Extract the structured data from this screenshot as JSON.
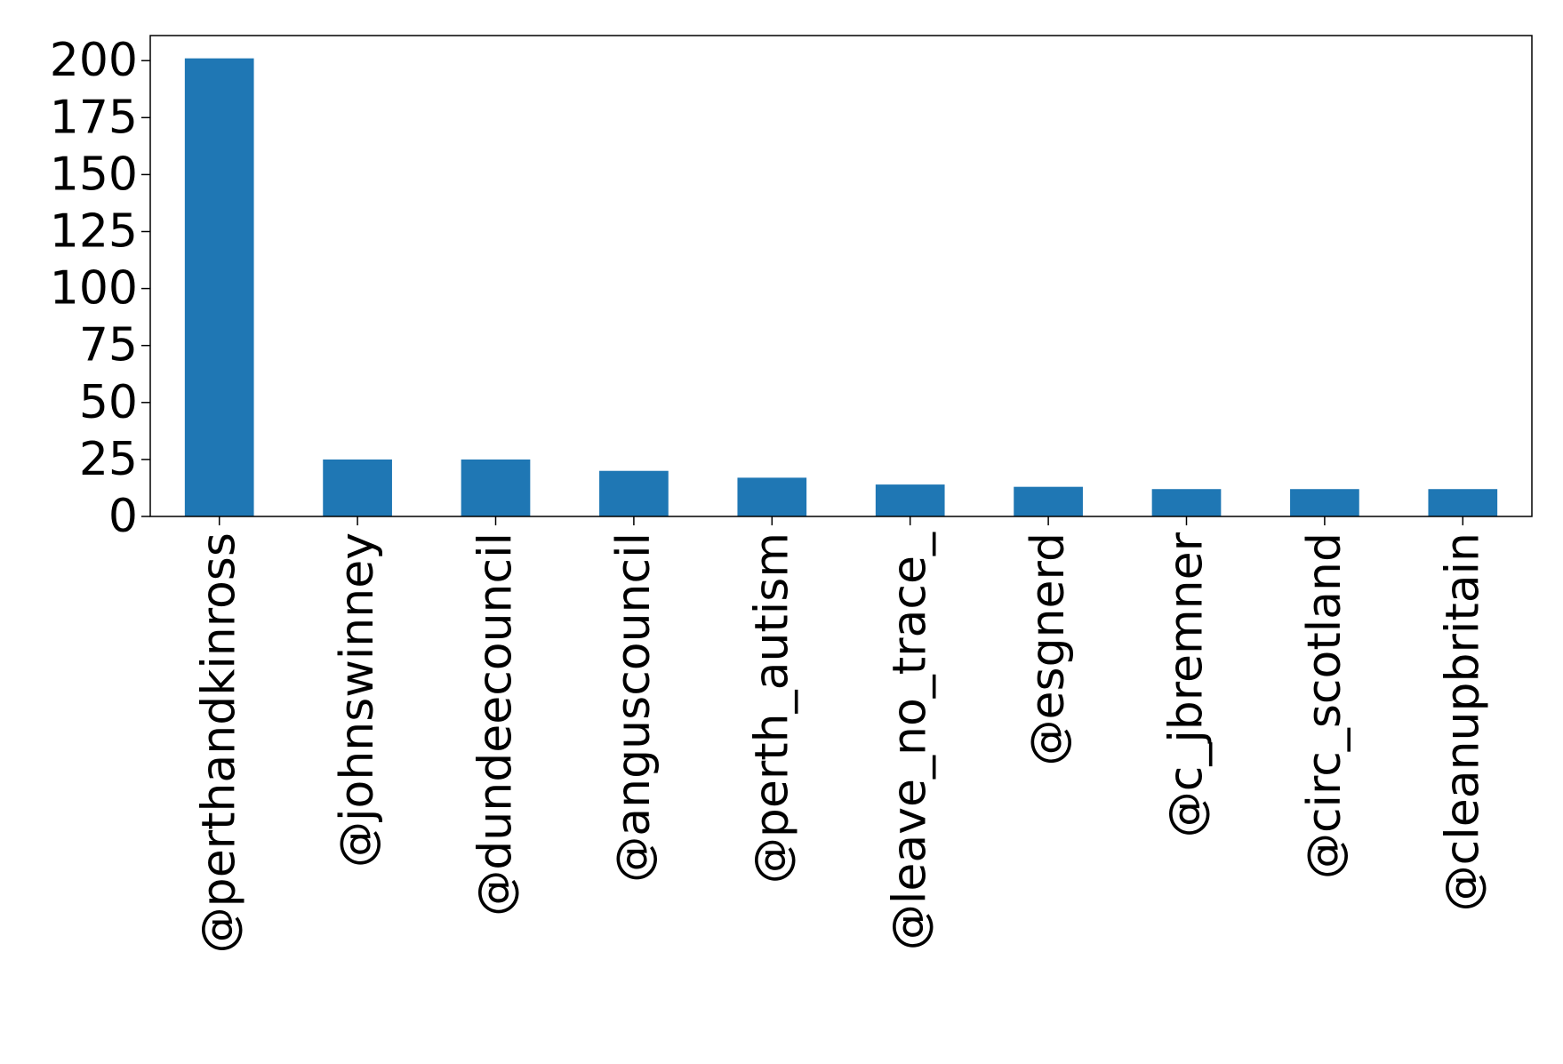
{
  "chart_data": {
    "type": "bar",
    "categories": [
      "@perthandkinross",
      "@johnswinney",
      "@dundeecouncil",
      "@anguscouncil",
      "@perth_autism",
      "@leave_no_trace_",
      "@esgnerd",
      "@c_jbremner",
      "@circ_scotland",
      "@cleanupbritain"
    ],
    "values": [
      201,
      25,
      25,
      20,
      17,
      14,
      13,
      12,
      12,
      12
    ],
    "title": "",
    "xlabel": "",
    "ylabel": "",
    "ylim": [
      0,
      211
    ],
    "yticks": [
      0,
      25,
      50,
      75,
      100,
      125,
      150,
      175,
      200
    ],
    "grid": false,
    "bar_color": "#1f77b4"
  }
}
